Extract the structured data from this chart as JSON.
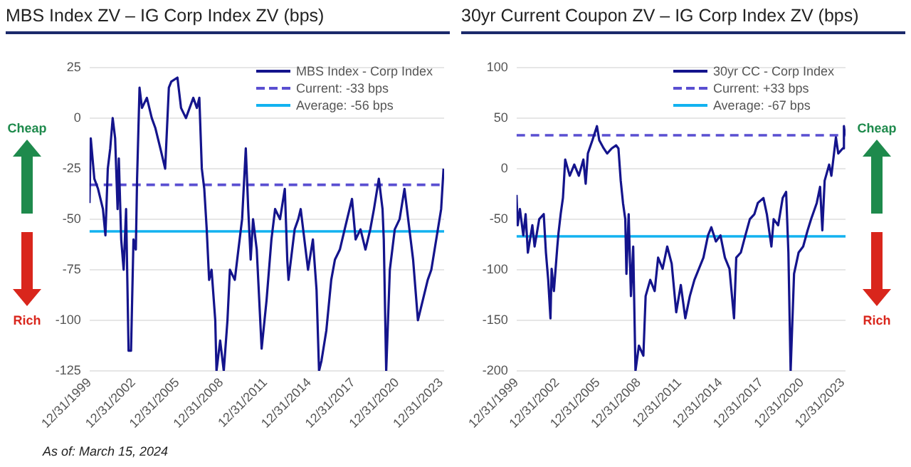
{
  "chart_data": [
    {
      "type": "line",
      "title": "MBS Index ZV – IG Corp Index ZV (bps)",
      "annotations": [
        "Cheap",
        "Rich",
        "As of: March 15, 2024"
      ],
      "legend": "top right",
      "grid": "y",
      "marker": "none",
      "xlim": [
        "1999-12-31",
        "2024-03-15"
      ],
      "xticks": [
        {
          "value": "1999-12-31",
          "label": "12/31/1999"
        },
        {
          "value": "2002-12-31",
          "label": "12/31/2002"
        },
        {
          "value": "2005-12-31",
          "label": "12/31/2005"
        },
        {
          "value": "2008-12-31",
          "label": "12/31/2008"
        },
        {
          "value": "2011-12-31",
          "label": "12/31/2011"
        },
        {
          "value": "2014-12-31",
          "label": "12/31/2014"
        },
        {
          "value": "2017-12-31",
          "label": "12/31/2017"
        },
        {
          "value": "2020-12-31",
          "label": "12/31/2020"
        },
        {
          "value": "2023-12-31",
          "label": "12/31/2023"
        }
      ],
      "ylim": [
        -125,
        25
      ],
      "yticks": [
        -125,
        -100,
        -75,
        -50,
        -25,
        0,
        25
      ],
      "ref_lines": [
        {
          "axis": "y",
          "value": -33,
          "label": "Current: -33 bps",
          "color": "#5a4fd1",
          "line_style": "dashed"
        },
        {
          "axis": "y",
          "value": -56,
          "label": "Average: -56 bps",
          "color": "#12b2f0",
          "line_style": "solid"
        }
      ],
      "series": [
        {
          "name": "MBS Index - Corp Index",
          "color": "#14148c",
          "x": [
            "2000-01",
            "2000-02",
            "2000-05",
            "2000-08",
            "2000-12",
            "2001-02",
            "2001-04",
            "2001-06",
            "2001-08",
            "2001-10",
            "2001-12",
            "2002-01",
            "2002-03",
            "2002-05",
            "2002-07",
            "2002-09",
            "2002-11",
            "2003-01",
            "2003-03",
            "2003-04",
            "2003-06",
            "2003-08",
            "2003-12",
            "2004-04",
            "2004-07",
            "2004-11",
            "2005-03",
            "2005-06",
            "2005-08",
            "2006-01",
            "2006-04",
            "2006-08",
            "2007-02",
            "2007-05",
            "2007-07",
            "2007-09",
            "2007-11",
            "2008-01",
            "2008-03",
            "2008-05",
            "2008-08",
            "2008-09",
            "2008-12",
            "2009-03",
            "2009-06",
            "2009-08",
            "2009-12",
            "2010-03",
            "2010-06",
            "2010-09",
            "2010-11",
            "2011-01",
            "2011-03",
            "2011-06",
            "2011-10",
            "2012-02",
            "2012-06",
            "2012-09",
            "2013-01",
            "2013-05",
            "2013-07",
            "2013-08",
            "2014-01",
            "2014-04",
            "2014-06",
            "2014-08",
            "2014-12",
            "2015-04",
            "2015-07",
            "2015-09",
            "2015-11",
            "2016-03",
            "2016-07",
            "2016-10",
            "2017-02",
            "2017-06",
            "2017-10",
            "2017-12",
            "2018-03",
            "2018-07",
            "2018-11",
            "2019-03",
            "2019-06",
            "2019-10",
            "2020-01",
            "2020-02",
            "2020-04",
            "2020-07",
            "2020-11",
            "2021-03",
            "2021-07",
            "2021-11",
            "2022-02",
            "2022-06",
            "2022-10",
            "2023-02",
            "2023-05",
            "2023-09",
            "2024-01",
            "2024-03"
          ],
          "values": [
            -42,
            -10,
            -30,
            -35,
            -45,
            -58,
            -25,
            -15,
            0,
            -10,
            -45,
            -20,
            -60,
            -75,
            -45,
            -115,
            -115,
            -60,
            -65,
            -30,
            15,
            5,
            10,
            0,
            -5,
            -15,
            -25,
            15,
            18,
            20,
            5,
            0,
            10,
            5,
            10,
            -25,
            -35,
            -55,
            -80,
            -75,
            -100,
            -125,
            -110,
            -125,
            -100,
            -75,
            -80,
            -65,
            -50,
            -15,
            -45,
            -70,
            -50,
            -65,
            -114,
            -90,
            -60,
            -45,
            -50,
            -35,
            -70,
            -80,
            -55,
            -50,
            -45,
            -55,
            -75,
            -60,
            -85,
            -125,
            -120,
            -105,
            -80,
            -70,
            -65,
            -55,
            -45,
            -40,
            -60,
            -55,
            -65,
            -55,
            -45,
            -30,
            -45,
            -60,
            -125,
            -75,
            -55,
            -50,
            -35,
            -55,
            -70,
            -100,
            -90,
            -80,
            -75,
            -60,
            -45,
            -25
          ]
        }
      ]
    },
    {
      "type": "line",
      "title": "30yr Current Coupon ZV – IG Corp Index ZV (bps)",
      "annotations": [
        "Cheap",
        "Rich"
      ],
      "legend": "top right",
      "grid": "y",
      "marker": "none",
      "xlim": [
        "1999-12-31",
        "2024-03-15"
      ],
      "xticks": [
        {
          "value": "1999-12-31",
          "label": "12/31/1999"
        },
        {
          "value": "2002-12-31",
          "label": "12/31/2002"
        },
        {
          "value": "2005-12-31",
          "label": "12/31/2005"
        },
        {
          "value": "2008-12-31",
          "label": "12/31/2008"
        },
        {
          "value": "2011-12-31",
          "label": "12/31/2011"
        },
        {
          "value": "2014-12-31",
          "label": "12/31/2014"
        },
        {
          "value": "2017-12-31",
          "label": "12/31/2017"
        },
        {
          "value": "2020-12-31",
          "label": "12/31/2020"
        },
        {
          "value": "2023-12-31",
          "label": "12/31/2023"
        }
      ],
      "ylim": [
        -200,
        100
      ],
      "yticks": [
        -200,
        -150,
        -100,
        -50,
        0,
        50,
        100
      ],
      "ref_lines": [
        {
          "axis": "y",
          "value": 33,
          "label": "Current: +33 bps",
          "color": "#5a4fd1",
          "line_style": "dashed"
        },
        {
          "axis": "y",
          "value": -67,
          "label": "Average: -67 bps",
          "color": "#12b2f0",
          "line_style": "solid"
        }
      ],
      "series": [
        {
          "name": "30yr CC  - Corp Index",
          "color": "#14148c",
          "x": [
            "2000-01",
            "2000-02",
            "2000-04",
            "2000-07",
            "2000-09",
            "2000-11",
            "2001-03",
            "2001-05",
            "2001-09",
            "2002-01",
            "2002-03",
            "2002-05",
            "2002-07",
            "2002-08",
            "2002-10",
            "2003-01",
            "2003-02",
            "2003-04",
            "2003-06",
            "2003-08",
            "2003-12",
            "2004-04",
            "2004-08",
            "2004-12",
            "2005-02",
            "2005-04",
            "2005-08",
            "2005-12",
            "2006-02",
            "2006-06",
            "2006-09",
            "2007-01",
            "2007-05",
            "2007-07",
            "2007-09",
            "2007-11",
            "2008-01",
            "2008-02",
            "2008-04",
            "2008-06",
            "2008-08",
            "2008-10",
            "2009-01",
            "2009-05",
            "2009-07",
            "2009-11",
            "2010-03",
            "2010-06",
            "2010-10",
            "2011-02",
            "2011-06",
            "2011-10",
            "2012-02",
            "2012-06",
            "2012-10",
            "2013-02",
            "2013-06",
            "2013-10",
            "2014-02",
            "2014-05",
            "2014-09",
            "2015-01",
            "2015-05",
            "2015-09",
            "2016-01",
            "2016-03",
            "2016-07",
            "2016-11",
            "2017-03",
            "2017-07",
            "2017-10",
            "2018-03",
            "2018-06",
            "2018-10",
            "2018-12",
            "2019-04",
            "2019-08",
            "2019-11",
            "2020-01",
            "2020-03",
            "2020-06",
            "2020-10",
            "2021-02",
            "2021-06",
            "2021-09",
            "2022-02",
            "2022-05",
            "2022-07",
            "2022-09",
            "2023-01",
            "2023-03",
            "2023-07",
            "2023-09",
            "2024-01",
            "2024-02",
            "2024-03"
          ],
          "values": [
            -26,
            -56,
            -40,
            -66,
            -45,
            -83,
            -56,
            -77,
            -50,
            -45,
            -83,
            -110,
            -148,
            -99,
            -121,
            -77,
            -64,
            -45,
            -29,
            9,
            -7,
            4,
            -7,
            9,
            -15,
            15,
            28,
            42,
            28,
            20,
            15,
            20,
            23,
            20,
            -12,
            -34,
            -50,
            -104,
            -45,
            -126,
            -77,
            -200,
            -175,
            -185,
            -126,
            -110,
            -121,
            -88,
            -99,
            -77,
            -94,
            -142,
            -115,
            -148,
            -126,
            -110,
            -99,
            -88,
            -66,
            -58,
            -72,
            -66,
            -88,
            -99,
            -148,
            -88,
            -83,
            -66,
            -50,
            -45,
            -34,
            -29,
            -45,
            -77,
            -50,
            -56,
            -29,
            -23,
            -83,
            -200,
            -104,
            -83,
            -77,
            -61,
            -50,
            -34,
            -18,
            -61,
            -12,
            4,
            -7,
            31,
            15,
            20,
            42,
            33
          ]
        }
      ]
    }
  ]
}
